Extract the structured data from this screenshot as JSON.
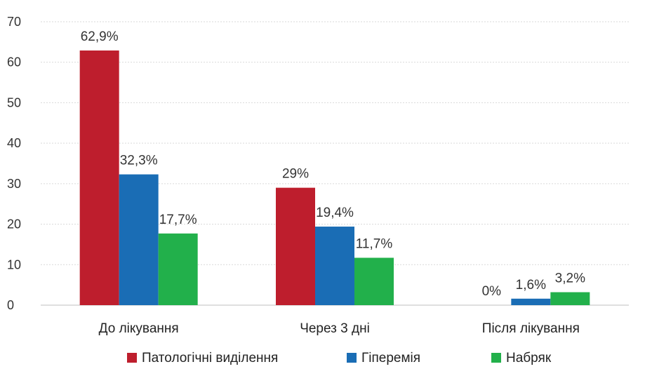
{
  "chart_data": {
    "type": "bar",
    "categories": [
      "До лікування",
      "Через 3 дні",
      "Після лікування"
    ],
    "series": [
      {
        "name": "Патологічні виділення",
        "values": [
          62.9,
          29,
          0
        ],
        "labels": [
          "62,9%",
          "29%",
          "0%"
        ],
        "color": "#be1e2d"
      },
      {
        "name": "Гіперемія",
        "values": [
          32.3,
          19.4,
          1.6
        ],
        "labels": [
          "32,3%",
          "19,4%",
          "1,6%"
        ],
        "color": "#1a6db5"
      },
      {
        "name": "Набряк",
        "values": [
          17.7,
          11.7,
          3.2
        ],
        "labels": [
          "17,7%",
          "11,7%",
          "3,2%"
        ],
        "color": "#22b04b"
      }
    ],
    "yticks": [
      "0",
      "10",
      "20",
      "30",
      "40",
      "50",
      "60",
      "70"
    ],
    "ylim": [
      0,
      70
    ],
    "grid": true,
    "legend": "bottom"
  }
}
